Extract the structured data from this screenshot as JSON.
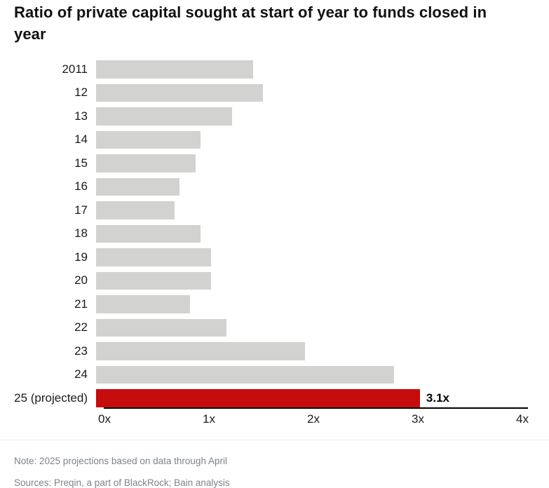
{
  "page": {
    "background": "#ffffff"
  },
  "chart_data": {
    "type": "bar",
    "orientation": "horizontal",
    "title": "Ratio of private capital sought at start of year to funds closed in year",
    "categories": [
      "2011",
      "12",
      "13",
      "14",
      "15",
      "16",
      "17",
      "18",
      "19",
      "20",
      "21",
      "22",
      "23",
      "24",
      "25 (projected)"
    ],
    "values": [
      1.5,
      1.6,
      1.3,
      1.0,
      0.95,
      0.8,
      0.75,
      1.0,
      1.1,
      1.1,
      0.9,
      1.25,
      2.0,
      2.85,
      3.1
    ],
    "xlabel": "",
    "ylabel": "",
    "xlim": [
      0,
      4
    ],
    "x_ticks": [
      "0x",
      "1x",
      "2x",
      "3x",
      "4x"
    ],
    "grid": "off",
    "legend": "none",
    "highlight_index": 14,
    "highlight_value_label": "3.1x",
    "bar_color": "#d2d2d0",
    "highlight_color": "#c60c0c"
  },
  "footer": {
    "note": "Note: 2025 projections based on data through April",
    "sources": "Sources: Preqin, a part of BlackRock; Bain analysis"
  }
}
